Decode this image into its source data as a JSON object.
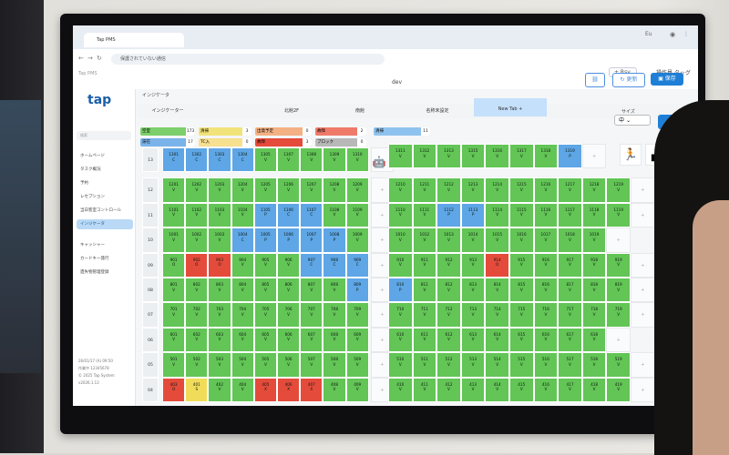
{
  "browser": {
    "tab_title": "Tap PMS",
    "url": "保護されていない通信",
    "profile": "Eu"
  },
  "app": {
    "logo": "tap",
    "crumb": "Tap PMS",
    "env": "dev",
    "rsv_label": "+ Rsv.",
    "op_type": "操作員 タッグ",
    "update_label": "更新",
    "save_label": "保存"
  },
  "sidebar": {
    "search_placeholder": "検索",
    "items": [
      {
        "label": "ホームページ"
      },
      {
        "label": "タスク概況"
      },
      {
        "label": "予約"
      },
      {
        "label": "レセプション"
      },
      {
        "label": "当日客室コントロール"
      },
      {
        "label": "インジケータ",
        "active": true
      },
      {
        "label": "キャッシャー"
      },
      {
        "label": "カードキー発行"
      },
      {
        "label": "遺失物管理登録"
      }
    ],
    "footer": [
      "26/01/17 (A) 09:50",
      "作業中 12345678",
      "© 2025 Tap System",
      "v2026.1.13"
    ]
  },
  "page": {
    "title": "インジケータ"
  },
  "tabs": [
    {
      "label": "インジケーター"
    },
    {
      "label": "北館2F"
    },
    {
      "label": "南館"
    },
    {
      "label": "名称未設定"
    },
    {
      "label": "New Tab +",
      "selected": true
    }
  ],
  "size": {
    "label": "サイズ",
    "value": "中"
  },
  "legend": [
    {
      "label": "空室",
      "count": "173",
      "color": "#7ccf6a"
    },
    {
      "label": "清掃",
      "count": "3",
      "color": "#f1e37a"
    },
    {
      "label": "出発予定",
      "count": "0",
      "color": "#f4b183"
    },
    {
      "label": "故障",
      "count": "2",
      "color": "#f07a6a"
    },
    {
      "label": "清掃",
      "count": "11",
      "color": "#8fc3ef"
    },
    {
      "label": "滞在",
      "count": "17",
      "color": "#7ab3ea"
    },
    {
      "label": "TC入",
      "count": "0",
      "color": "#f7e090"
    },
    {
      "label": "故障",
      "count": "3",
      "color": "#e54b3b"
    },
    {
      "label": "ブロック",
      "count": "0",
      "color": "#b8b8b8"
    }
  ],
  "floors_left": [
    {
      "floor": "13",
      "rooms": [
        [
          "1301",
          "C"
        ],
        [
          "1302",
          "C"
        ],
        [
          "1303",
          "C"
        ],
        [
          "1304",
          "C"
        ],
        [
          "1305",
          "V"
        ],
        [
          "1307",
          "V"
        ],
        [
          "1308",
          "V"
        ],
        [
          "1309",
          "V"
        ],
        [
          "1310",
          "V"
        ]
      ],
      "blue": [
        0,
        1,
        2,
        3
      ]
    },
    {
      "floor": "12",
      "rooms": [
        [
          "1201",
          "V"
        ],
        [
          "1202",
          "V"
        ],
        [
          "1203",
          "V"
        ],
        [
          "1204",
          "V"
        ],
        [
          "1205",
          "V"
        ],
        [
          "1206",
          "V"
        ],
        [
          "1207",
          "V"
        ],
        [
          "1208",
          "V"
        ],
        [
          "1209",
          "V"
        ]
      ]
    },
    {
      "floor": "11",
      "rooms": [
        [
          "1101",
          "V"
        ],
        [
          "1102",
          "V"
        ],
        [
          "1103",
          "V"
        ],
        [
          "1104",
          "V"
        ],
        [
          "1105",
          "P"
        ],
        [
          "1106",
          "C"
        ],
        [
          "1107",
          "C"
        ],
        [
          "1108",
          "V"
        ],
        [
          "1109",
          "V"
        ]
      ],
      "blue": [
        4,
        5,
        6
      ]
    },
    {
      "floor": "10",
      "rooms": [
        [
          "1001",
          "V"
        ],
        [
          "1002",
          "V"
        ],
        [
          "1003",
          "V"
        ],
        [
          "1004",
          "C"
        ],
        [
          "1005",
          "P"
        ],
        [
          "1006",
          "P"
        ],
        [
          "1007",
          "P"
        ],
        [
          "1008",
          "P"
        ],
        [
          "1009",
          "V"
        ]
      ],
      "blue": [
        3,
        4,
        5,
        6,
        7
      ]
    },
    {
      "floor": "09",
      "rooms": [
        [
          "901",
          "O"
        ],
        [
          "902",
          "O"
        ],
        [
          "903",
          "O"
        ],
        [
          "904",
          "V"
        ],
        [
          "905",
          "V"
        ],
        [
          "906",
          "V"
        ],
        [
          "907",
          "C"
        ],
        [
          "908",
          "C"
        ],
        [
          "909",
          "C"
        ]
      ],
      "red": [
        1,
        2
      ],
      "blue": [
        6,
        7,
        8
      ]
    },
    {
      "floor": "08",
      "rooms": [
        [
          "801",
          "V"
        ],
        [
          "802",
          "V"
        ],
        [
          "803",
          "V"
        ],
        [
          "804",
          "V"
        ],
        [
          "805",
          "V"
        ],
        [
          "806",
          "V"
        ],
        [
          "807",
          "V"
        ],
        [
          "808",
          "V"
        ],
        [
          "809",
          "P"
        ]
      ],
      "blue": [
        8
      ]
    },
    {
      "floor": "07",
      "rooms": [
        [
          "701",
          "V"
        ],
        [
          "702",
          "V"
        ],
        [
          "703",
          "V"
        ],
        [
          "704",
          "V"
        ],
        [
          "705",
          "V"
        ],
        [
          "706",
          "V"
        ],
        [
          "707",
          "V"
        ],
        [
          "708",
          "V"
        ],
        [
          "709",
          "V"
        ]
      ]
    },
    {
      "floor": "06",
      "rooms": [
        [
          "601",
          "V"
        ],
        [
          "602",
          "V"
        ],
        [
          "603",
          "V"
        ],
        [
          "604",
          "V"
        ],
        [
          "605",
          "V"
        ],
        [
          "606",
          "V"
        ],
        [
          "607",
          "V"
        ],
        [
          "608",
          "V"
        ],
        [
          "609",
          "V"
        ]
      ]
    },
    {
      "floor": "05",
      "rooms": [
        [
          "501",
          "V"
        ],
        [
          "502",
          "V"
        ],
        [
          "503",
          "V"
        ],
        [
          "504",
          "V"
        ],
        [
          "505",
          "V"
        ],
        [
          "506",
          "V"
        ],
        [
          "507",
          "V"
        ],
        [
          "508",
          "V"
        ],
        [
          "509",
          "V"
        ]
      ]
    },
    {
      "floor": "04",
      "rooms": [
        [
          "403",
          "O"
        ],
        [
          "401",
          "S"
        ],
        [
          "402",
          "V"
        ],
        [
          "404",
          "V"
        ],
        [
          "405",
          "X"
        ],
        [
          "406",
          "X"
        ],
        [
          "407",
          "X"
        ],
        [
          "408",
          "V"
        ],
        [
          "409",
          "V"
        ]
      ],
      "red": [
        0,
        4,
        5,
        6
      ],
      "yellow": [
        1
      ]
    }
  ],
  "floors_right": [
    {
      "rooms": [
        [
          "1311",
          "V"
        ],
        [
          "1312",
          "V"
        ],
        [
          "1313",
          "V"
        ],
        [
          "1315",
          "V"
        ],
        [
          "1316",
          "V"
        ],
        [
          "1317",
          "V"
        ],
        [
          "1318",
          "V"
        ],
        [
          "1319",
          "P"
        ]
      ],
      "blue": [
        7
      ]
    },
    {
      "rooms": [
        [
          "1210",
          "V"
        ],
        [
          "1211",
          "V"
        ],
        [
          "1212",
          "V"
        ],
        [
          "1213",
          "V"
        ],
        [
          "1214",
          "V"
        ],
        [
          "1215",
          "V"
        ],
        [
          "1216",
          "V"
        ],
        [
          "1217",
          "V"
        ],
        [
          "1218",
          "V"
        ],
        [
          "1219",
          "V"
        ]
      ]
    },
    {
      "rooms": [
        [
          "1110",
          "V"
        ],
        [
          "1111",
          "V"
        ],
        [
          "1112",
          "P"
        ],
        [
          "1113",
          "P"
        ],
        [
          "1114",
          "V"
        ],
        [
          "1115",
          "V"
        ],
        [
          "1116",
          "V"
        ],
        [
          "1117",
          "V"
        ],
        [
          "1118",
          "V"
        ],
        [
          "1119",
          "V"
        ]
      ],
      "blue": [
        2,
        3
      ]
    },
    {
      "rooms": [
        [
          "1010",
          "V"
        ],
        [
          "1012",
          "V"
        ],
        [
          "1013",
          "V"
        ],
        [
          "1014",
          "V"
        ],
        [
          "1015",
          "V"
        ],
        [
          "1016",
          "V"
        ],
        [
          "1017",
          "V"
        ],
        [
          "1018",
          "V"
        ],
        [
          "1019",
          "V"
        ]
      ]
    },
    {
      "rooms": [
        [
          "910",
          "V"
        ],
        [
          "911",
          "V"
        ],
        [
          "912",
          "V"
        ],
        [
          "913",
          "V"
        ],
        [
          "914",
          "O"
        ],
        [
          "915",
          "V"
        ],
        [
          "916",
          "V"
        ],
        [
          "917",
          "V"
        ],
        [
          "918",
          "V"
        ],
        [
          "919",
          "V"
        ]
      ],
      "red": [
        4
      ]
    },
    {
      "rooms": [
        [
          "810",
          "P"
        ],
        [
          "811",
          "V"
        ],
        [
          "812",
          "V"
        ],
        [
          "813",
          "V"
        ],
        [
          "814",
          "V"
        ],
        [
          "815",
          "V"
        ],
        [
          "816",
          "V"
        ],
        [
          "817",
          "V"
        ],
        [
          "818",
          "V"
        ],
        [
          "819",
          "V"
        ]
      ],
      "blue": [
        0
      ]
    },
    {
      "rooms": [
        [
          "710",
          "V"
        ],
        [
          "711",
          "V"
        ],
        [
          "712",
          "V"
        ],
        [
          "713",
          "V"
        ],
        [
          "714",
          "V"
        ],
        [
          "715",
          "V"
        ],
        [
          "716",
          "V"
        ],
        [
          "717",
          "V"
        ],
        [
          "718",
          "V"
        ],
        [
          "719",
          "V"
        ]
      ]
    },
    {
      "rooms": [
        [
          "610",
          "V"
        ],
        [
          "611",
          "V"
        ],
        [
          "612",
          "V"
        ],
        [
          "613",
          "V"
        ],
        [
          "614",
          "V"
        ],
        [
          "615",
          "V"
        ],
        [
          "616",
          "V"
        ],
        [
          "617",
          "V"
        ],
        [
          "618",
          "V"
        ]
      ]
    },
    {
      "rooms": [
        [
          "510",
          "V"
        ],
        [
          "511",
          "V"
        ],
        [
          "512",
          "V"
        ],
        [
          "513",
          "V"
        ],
        [
          "514",
          "V"
        ],
        [
          "515",
          "V"
        ],
        [
          "516",
          "V"
        ],
        [
          "517",
          "V"
        ],
        [
          "518",
          "V"
        ],
        [
          "519",
          "V"
        ]
      ]
    },
    {
      "rooms": [
        [
          "410",
          "V"
        ],
        [
          "411",
          "V"
        ],
        [
          "412",
          "V"
        ],
        [
          "413",
          "V"
        ],
        [
          "414",
          "V"
        ],
        [
          "415",
          "V"
        ],
        [
          "416",
          "V"
        ],
        [
          "417",
          "V"
        ],
        [
          "418",
          "V"
        ],
        [
          "419",
          "V"
        ]
      ]
    }
  ],
  "colors": {
    "green": "#62c556",
    "blue": "#5ea6e6",
    "red": "#e54b3b",
    "yellow": "#f1dc5a"
  }
}
